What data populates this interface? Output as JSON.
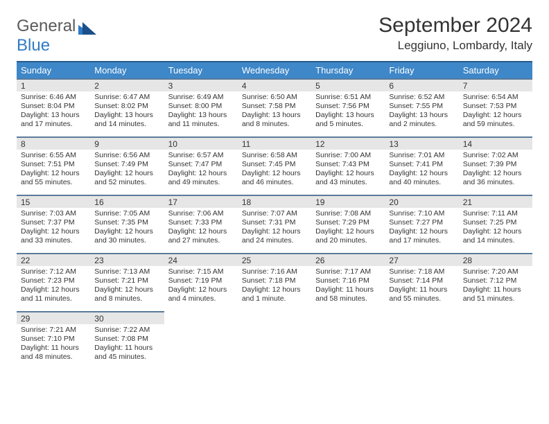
{
  "logo": {
    "text1": "General",
    "text2": "Blue"
  },
  "title": "September 2024",
  "location": "Leggiuno, Lombardy, Italy",
  "colors": {
    "header_bg": "#3e87c8",
    "header_border": "#2a5a8a",
    "cell_border": "#5a7a9a",
    "daynum_bg": "#e6e6e6",
    "logo_gray": "#5a5a5a",
    "logo_blue": "#2f7bc4"
  },
  "weekdays": [
    "Sunday",
    "Monday",
    "Tuesday",
    "Wednesday",
    "Thursday",
    "Friday",
    "Saturday"
  ],
  "weeks": [
    [
      {
        "n": "1",
        "sr": "6:46 AM",
        "ss": "8:04 PM",
        "dl": "13 hours and 17 minutes."
      },
      {
        "n": "2",
        "sr": "6:47 AM",
        "ss": "8:02 PM",
        "dl": "13 hours and 14 minutes."
      },
      {
        "n": "3",
        "sr": "6:49 AM",
        "ss": "8:00 PM",
        "dl": "13 hours and 11 minutes."
      },
      {
        "n": "4",
        "sr": "6:50 AM",
        "ss": "7:58 PM",
        "dl": "13 hours and 8 minutes."
      },
      {
        "n": "5",
        "sr": "6:51 AM",
        "ss": "7:56 PM",
        "dl": "13 hours and 5 minutes."
      },
      {
        "n": "6",
        "sr": "6:52 AM",
        "ss": "7:55 PM",
        "dl": "13 hours and 2 minutes."
      },
      {
        "n": "7",
        "sr": "6:54 AM",
        "ss": "7:53 PM",
        "dl": "12 hours and 59 minutes."
      }
    ],
    [
      {
        "n": "8",
        "sr": "6:55 AM",
        "ss": "7:51 PM",
        "dl": "12 hours and 55 minutes."
      },
      {
        "n": "9",
        "sr": "6:56 AM",
        "ss": "7:49 PM",
        "dl": "12 hours and 52 minutes."
      },
      {
        "n": "10",
        "sr": "6:57 AM",
        "ss": "7:47 PM",
        "dl": "12 hours and 49 minutes."
      },
      {
        "n": "11",
        "sr": "6:58 AM",
        "ss": "7:45 PM",
        "dl": "12 hours and 46 minutes."
      },
      {
        "n": "12",
        "sr": "7:00 AM",
        "ss": "7:43 PM",
        "dl": "12 hours and 43 minutes."
      },
      {
        "n": "13",
        "sr": "7:01 AM",
        "ss": "7:41 PM",
        "dl": "12 hours and 40 minutes."
      },
      {
        "n": "14",
        "sr": "7:02 AM",
        "ss": "7:39 PM",
        "dl": "12 hours and 36 minutes."
      }
    ],
    [
      {
        "n": "15",
        "sr": "7:03 AM",
        "ss": "7:37 PM",
        "dl": "12 hours and 33 minutes."
      },
      {
        "n": "16",
        "sr": "7:05 AM",
        "ss": "7:35 PM",
        "dl": "12 hours and 30 minutes."
      },
      {
        "n": "17",
        "sr": "7:06 AM",
        "ss": "7:33 PM",
        "dl": "12 hours and 27 minutes."
      },
      {
        "n": "18",
        "sr": "7:07 AM",
        "ss": "7:31 PM",
        "dl": "12 hours and 24 minutes."
      },
      {
        "n": "19",
        "sr": "7:08 AM",
        "ss": "7:29 PM",
        "dl": "12 hours and 20 minutes."
      },
      {
        "n": "20",
        "sr": "7:10 AM",
        "ss": "7:27 PM",
        "dl": "12 hours and 17 minutes."
      },
      {
        "n": "21",
        "sr": "7:11 AM",
        "ss": "7:25 PM",
        "dl": "12 hours and 14 minutes."
      }
    ],
    [
      {
        "n": "22",
        "sr": "7:12 AM",
        "ss": "7:23 PM",
        "dl": "12 hours and 11 minutes."
      },
      {
        "n": "23",
        "sr": "7:13 AM",
        "ss": "7:21 PM",
        "dl": "12 hours and 8 minutes."
      },
      {
        "n": "24",
        "sr": "7:15 AM",
        "ss": "7:19 PM",
        "dl": "12 hours and 4 minutes."
      },
      {
        "n": "25",
        "sr": "7:16 AM",
        "ss": "7:18 PM",
        "dl": "12 hours and 1 minute."
      },
      {
        "n": "26",
        "sr": "7:17 AM",
        "ss": "7:16 PM",
        "dl": "11 hours and 58 minutes."
      },
      {
        "n": "27",
        "sr": "7:18 AM",
        "ss": "7:14 PM",
        "dl": "11 hours and 55 minutes."
      },
      {
        "n": "28",
        "sr": "7:20 AM",
        "ss": "7:12 PM",
        "dl": "11 hours and 51 minutes."
      }
    ],
    [
      {
        "n": "29",
        "sr": "7:21 AM",
        "ss": "7:10 PM",
        "dl": "11 hours and 48 minutes."
      },
      {
        "n": "30",
        "sr": "7:22 AM",
        "ss": "7:08 PM",
        "dl": "11 hours and 45 minutes."
      },
      null,
      null,
      null,
      null,
      null
    ]
  ],
  "labels": {
    "sunrise": "Sunrise:",
    "sunset": "Sunset:",
    "daylight": "Daylight:"
  }
}
